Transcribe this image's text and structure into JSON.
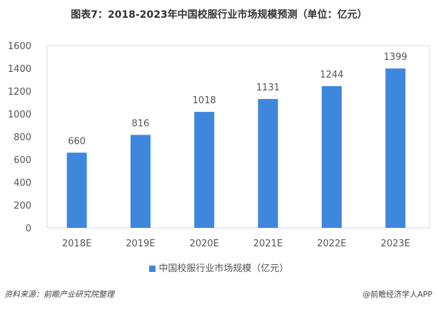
{
  "title": "图表7：2018-2023年中国校服行业市场规模预测（单位：亿元）",
  "source": "资料来源：前瞻产业研究院整理",
  "credit": "@前瞻经济学人APP",
  "colors": {
    "bar": "#3f86dd"
  },
  "chart_data": {
    "type": "bar",
    "title": "图表7：2018-2023年中国校服行业市场规模预测（单位：亿元）",
    "categories": [
      "2018E",
      "2019E",
      "2020E",
      "2021E",
      "2022E",
      "2023E"
    ],
    "series": [
      {
        "name": "中国校服行业市场规模（亿元）",
        "values": [
          660,
          816,
          1018,
          1131,
          1244,
          1399
        ]
      }
    ],
    "yticks": [
      0,
      200,
      400,
      600,
      800,
      1000,
      1200,
      1400,
      1600
    ],
    "ylim": [
      0,
      1600
    ],
    "xlabel": "",
    "ylabel": "",
    "grid": false,
    "legend": "bottom-center"
  }
}
